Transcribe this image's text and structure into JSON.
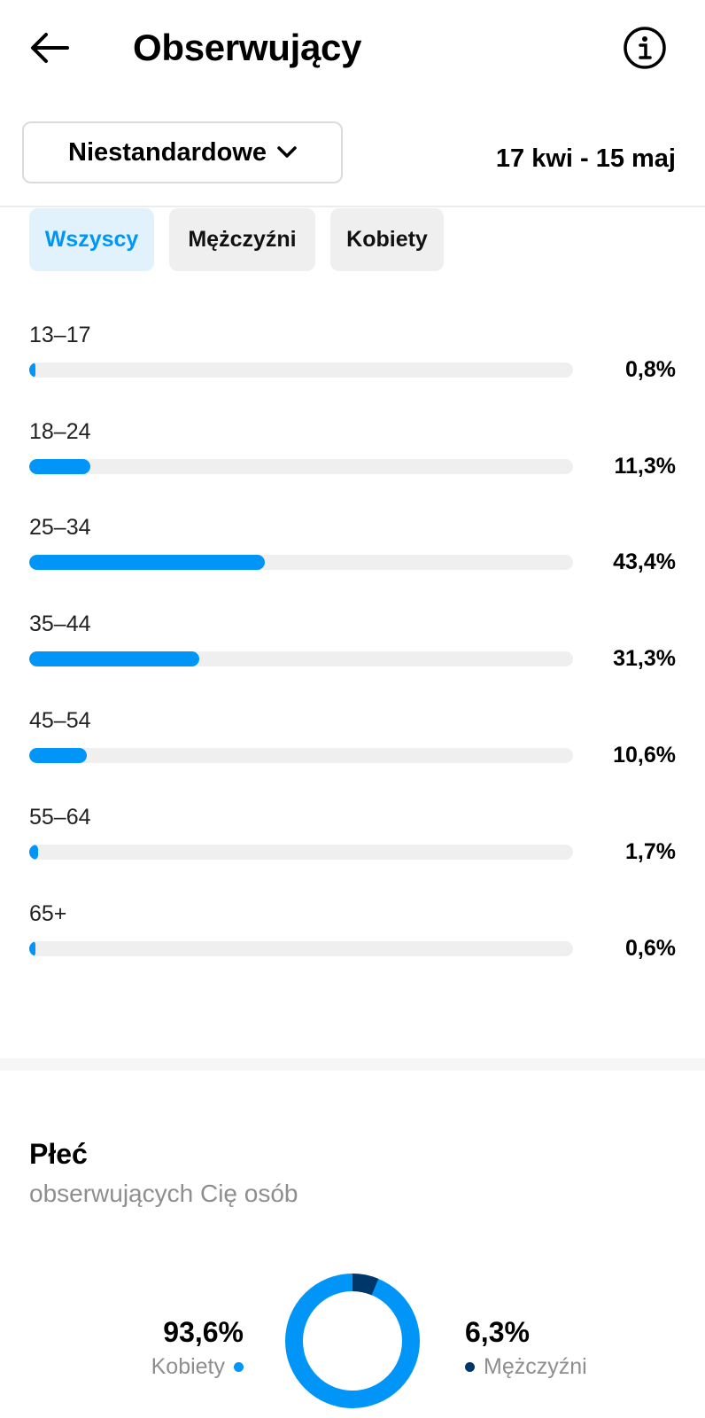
{
  "header": {
    "title": "Obserwujący",
    "back_icon": "arrow-left-icon",
    "info_icon": "info-icon"
  },
  "range": {
    "selected": "Niestandardowe",
    "dates": "17 kwi - 15 maj"
  },
  "filters": [
    {
      "label": "Wszyscy",
      "active": true
    },
    {
      "label": "Mężczyźni",
      "active": false
    },
    {
      "label": "Kobiety",
      "active": false
    }
  ],
  "age_groups": [
    {
      "label": "13–17",
      "percent_text": "0,8%",
      "value": 0.8
    },
    {
      "label": "18–24",
      "percent_text": "11,3%",
      "value": 11.3
    },
    {
      "label": "25–34",
      "percent_text": "43,4%",
      "value": 43.4
    },
    {
      "label": "35–44",
      "percent_text": "31,3%",
      "value": 31.3
    },
    {
      "label": "45–54",
      "percent_text": "10,6%",
      "value": 10.6
    },
    {
      "label": "55–64",
      "percent_text": "1,7%",
      "value": 1.7
    },
    {
      "label": "65+",
      "percent_text": "0,6%",
      "value": 0.6
    }
  ],
  "gender": {
    "title": "Płeć",
    "subtitle": "obserwujących Cię osób",
    "women": {
      "percent_text": "93,6%",
      "label": "Kobiety",
      "value": 93.6,
      "color": "#0095f6"
    },
    "men": {
      "percent_text": "6,3%",
      "label": "Mężczyźni",
      "value": 6.3,
      "color": "#00376b"
    }
  },
  "colors": {
    "accent": "#0095f6",
    "dark_accent": "#00376b",
    "track": "#efefef"
  }
}
